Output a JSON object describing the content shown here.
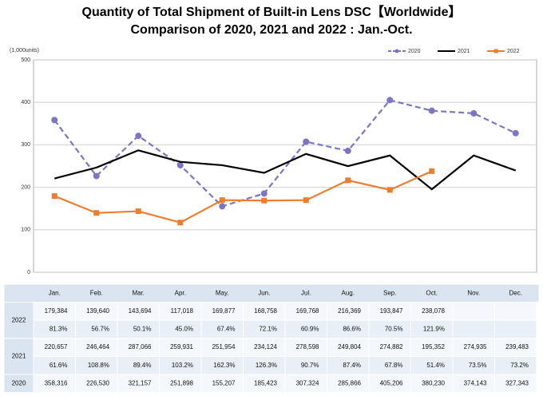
{
  "chart_data": {
    "type": "line",
    "title": "Quantity of Total Shipment of Built-in Lens DSC【Worldwide】",
    "subtitle": "Comparison of 2020, 2021 and 2022 : Jan.-Oct.",
    "y_label": "(1,000units)",
    "categories": [
      "Jan.",
      "Feb.",
      "Mar.",
      "Apr.",
      "May.",
      "Jun.",
      "Jul.",
      "Aug.",
      "Sep.",
      "Oct.",
      "Nov.",
      "Dec."
    ],
    "ylim": [
      0,
      500
    ],
    "yticks": [
      0,
      100,
      200,
      300,
      400,
      500
    ],
    "grid": true,
    "legend": "top-right",
    "series": [
      {
        "name": "2020",
        "color": "#7b76c4",
        "dash": true,
        "marker": "circle",
        "values": [
          358.316,
          226.53,
          321.157,
          251.898,
          155.207,
          185.423,
          307.324,
          285.866,
          405.206,
          380.23,
          374.143,
          327.343
        ],
        "value_labels": [
          "358,316",
          "226,530",
          "321,157",
          "251,898",
          "155,207",
          "185,423",
          "307,324",
          "285,866",
          "405,206",
          "380,230",
          "374,143",
          "327,343"
        ]
      },
      {
        "name": "2021",
        "color": "#000000",
        "dash": false,
        "marker": "none",
        "values": [
          220.657,
          246.464,
          287.066,
          259.931,
          251.954,
          234.124,
          278.598,
          249.804,
          274.882,
          195.352,
          274.935,
          239.483
        ],
        "value_labels": [
          "220,657",
          "246,464",
          "287,066",
          "259,931",
          "251,954",
          "234,124",
          "278,598",
          "249,804",
          "274,882",
          "195,352",
          "274,935",
          "239,483"
        ],
        "yoy": [
          "61.6%",
          "108.8%",
          "89.4%",
          "103.2%",
          "162.3%",
          "126.3%",
          "90.7%",
          "87.4%",
          "67.8%",
          "51.4%",
          "73.5%",
          "73.2%"
        ]
      },
      {
        "name": "2022",
        "color": "#ed7d31",
        "dash": false,
        "marker": "square",
        "values": [
          179.384,
          139.64,
          143.694,
          117.018,
          169.877,
          168.758,
          169.768,
          216.369,
          193.847,
          238.078,
          null,
          null
        ],
        "value_labels": [
          "179,384",
          "139,640",
          "143,694",
          "117,018",
          "169,877",
          "168,758",
          "169,768",
          "216,369",
          "193,847",
          "238,078",
          null,
          null
        ],
        "yoy": [
          "81.3%",
          "56.7%",
          "50.1%",
          "45.0%",
          "67.4%",
          "72.1%",
          "60.9%",
          "86.6%",
          "70.5%",
          "121.9%",
          null,
          null
        ]
      }
    ]
  }
}
